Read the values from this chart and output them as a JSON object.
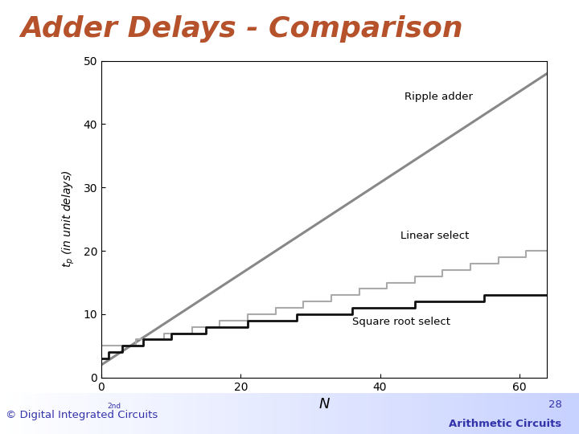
{
  "title": "Adder Delays - Comparison",
  "title_color": "#b5522b",
  "title_fontsize": 26,
  "xlabel": "N",
  "ylabel": "$t_p$ (in unit delays)",
  "xlim": [
    0,
    64
  ],
  "ylim": [
    0,
    50
  ],
  "xticks": [
    0,
    20,
    40,
    60
  ],
  "yticks": [
    0,
    10,
    20,
    30,
    40,
    50
  ],
  "ripple_color": "#888888",
  "linear_color": "#aaaaaa",
  "sqroot_color": "#111111",
  "label_ripple": "Ripple adder",
  "label_linear": "Linear select",
  "label_sqroot": "Square root select",
  "footer_left": "© Digital Integrated Circuits",
  "footer_left_super": "2nd",
  "footer_right_top": "28",
  "footer_right_bot": "Arithmetic Circuits",
  "footer_text_color": "#3333aa",
  "ripple_slope": 0.71875,
  "ripple_intercept": 2.0
}
